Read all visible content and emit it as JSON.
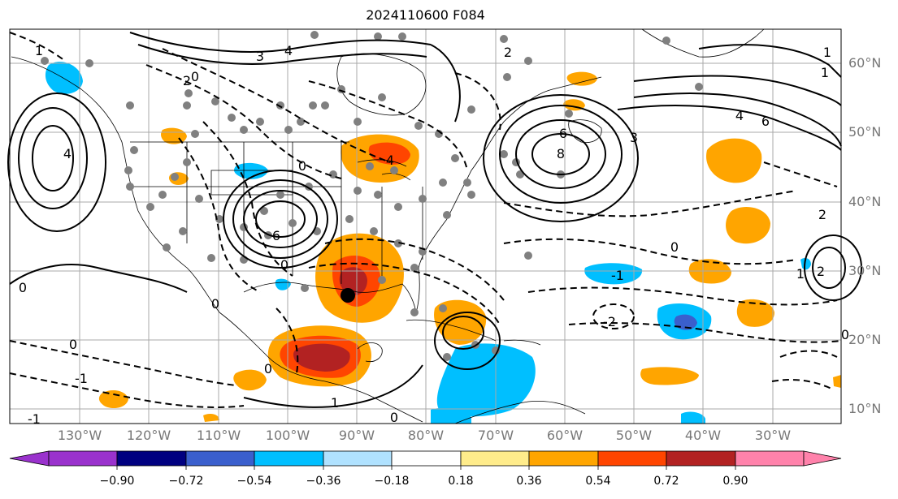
{
  "title": "2024110600 F084",
  "lat_labels": [
    "60°N",
    "50°N",
    "40°N",
    "30°N",
    "20°N",
    "10°N"
  ],
  "lon_labels": [
    "130°W",
    "120°W",
    "110°W",
    "100°W",
    "90°W",
    "80°W",
    "70°W",
    "60°W",
    "50°W",
    "40°W",
    "30°W"
  ],
  "colorbar": {
    "ticks": [
      "−0.90",
      "−0.72",
      "−0.54",
      "−0.36",
      "−0.18",
      "0.18",
      "0.36",
      "0.54",
      "0.72",
      "0.90"
    ],
    "colors": [
      "#9a32cd",
      "#000080",
      "#3a5fcd",
      "#00bfff",
      "#b0e2ff",
      "#ffffff",
      "#ffec8b",
      "#ffa500",
      "#ff4500",
      "#b22222",
      "#ff82ab"
    ]
  },
  "contour_labels": [
    "1",
    "3",
    "4",
    "0",
    "0",
    "2",
    "4",
    "6",
    "6",
    "8",
    "4",
    "3",
    "2",
    "0",
    "1",
    "2",
    "0",
    "-1",
    "0",
    "-2",
    "-1",
    "1",
    "0",
    "0",
    "0",
    "4",
    "6",
    "1",
    "2",
    "1",
    "-1",
    "0",
    "0"
  ],
  "marker": {
    "label": "storm-center"
  }
}
